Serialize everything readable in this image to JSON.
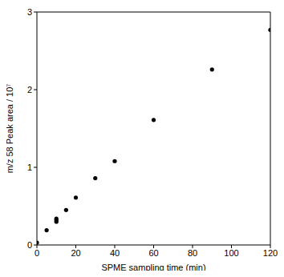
{
  "chart_data": {
    "type": "scatter",
    "x_label": "SPME sampling time (min)",
    "y_label": "m/z 58 Peak area / 10⁷",
    "x": [
      0,
      5,
      10,
      10,
      10,
      15,
      20,
      30,
      40,
      60,
      90,
      120
    ],
    "values": [
      0.03,
      0.19,
      0.3,
      0.32,
      0.34,
      0.45,
      0.61,
      0.86,
      1.08,
      1.61,
      2.26,
      2.77
    ],
    "color": "#000000",
    "marker": "circle",
    "xlim": [
      0,
      120
    ],
    "xticks": [
      0,
      20,
      40,
      60,
      80,
      100,
      120
    ],
    "ylim": [
      0,
      3
    ],
    "yticks": [
      0,
      1,
      2,
      3
    ],
    "grid": false
  }
}
